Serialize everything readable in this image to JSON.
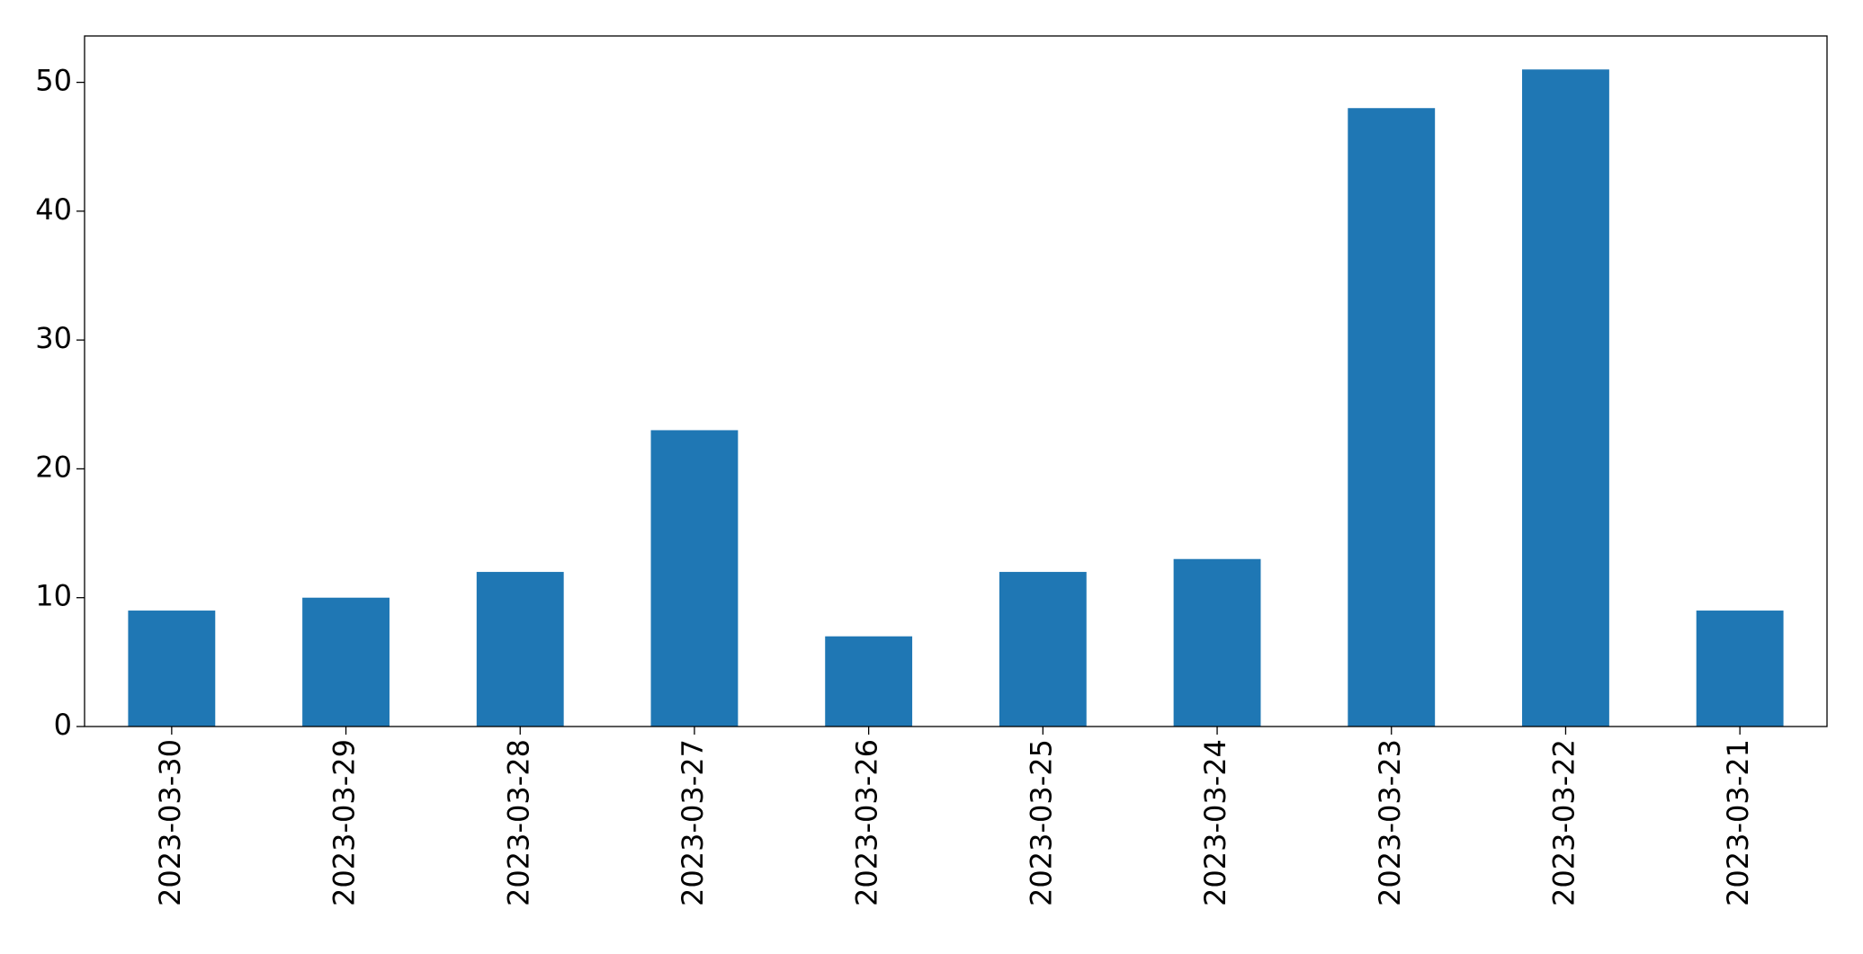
{
  "chart_data": {
    "type": "bar",
    "categories": [
      "2023-03-30",
      "2023-03-29",
      "2023-03-28",
      "2023-03-27",
      "2023-03-26",
      "2023-03-25",
      "2023-03-24",
      "2023-03-23",
      "2023-03-22",
      "2023-03-21"
    ],
    "values": [
      9,
      10,
      12,
      23,
      7,
      12,
      13,
      48,
      51,
      9
    ],
    "color": "#1f77b4",
    "ylim": [
      0,
      53.6
    ],
    "yticks": [
      0,
      10,
      20,
      30,
      40,
      50
    ],
    "grid": false
  }
}
